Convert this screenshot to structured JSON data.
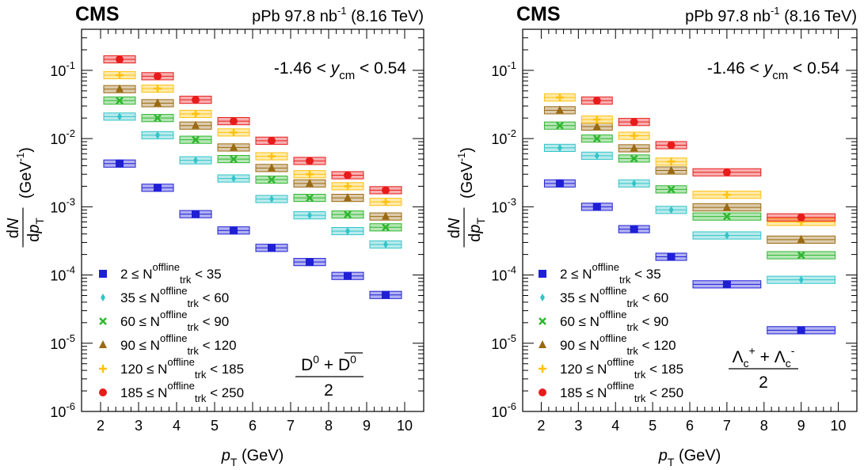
{
  "colors": {
    "2-35": "#1f1fd6",
    "35-60": "#33c4c8",
    "60-90": "#2fb62f",
    "90-120": "#9a6a12",
    "120-185": "#ffc20e",
    "185-250": "#e81b1b"
  },
  "chart_data": [
    {
      "type": "scatter",
      "panel": "left",
      "experiment": "CMS",
      "header": "pPb 97.8 nb",
      "header_sup": "-1",
      "header_tail": " (8.16 TeV)",
      "rapidity_pre": "-1.46 < ",
      "rapidity_var": "y",
      "rapidity_sub": "cm",
      "rapidity_post": " < 0.54",
      "particle_formula": "(D0 + anti-D0) / 2",
      "xlabel": "p",
      "xlabel_sub": "T",
      "xlabel_unit": " (GeV)",
      "ylabel_num": "dN",
      "ylabel_den": "dp",
      "ylabel_den_sub": "T",
      "ylabel_unit": "(GeV",
      "ylabel_unit_sup": "-1",
      "ylabel_unit_tail": ")",
      "x_ticks": [
        "2",
        "3",
        "4",
        "5",
        "6",
        "7",
        "8",
        "9",
        "10"
      ],
      "y_ticks": [
        {
          "base": "10",
          "exp": "-6",
          "value": 1e-06
        },
        {
          "base": "10",
          "exp": "-5",
          "value": 1e-05
        },
        {
          "base": "10",
          "exp": "-4",
          "value": 0.0001
        },
        {
          "base": "10",
          "exp": "-3",
          "value": 0.001
        },
        {
          "base": "10",
          "exp": "-2",
          "value": 0.01
        },
        {
          "base": "10",
          "exp": "-1",
          "value": 0.1
        }
      ],
      "xlim": [
        1.5,
        10.5
      ],
      "ylim": [
        1e-06,
        0.4
      ],
      "yscale": "log",
      "x_bins": [
        [
          2,
          3
        ],
        [
          3,
          4
        ],
        [
          4,
          5
        ],
        [
          5,
          6
        ],
        [
          6,
          7
        ],
        [
          7,
          8
        ],
        [
          8,
          9
        ],
        [
          9,
          10
        ]
      ],
      "series": [
        {
          "key": "2-35",
          "label_pre": "2 ≤ N",
          "label_sup": "offline",
          "label_sub": "trk",
          "label_post": " < 35",
          "marker": "square",
          "values": [
            0.0043,
            0.0019,
            0.00078,
            0.00045,
            0.00025,
            0.000155,
            9.7e-05,
            5.1e-05
          ]
        },
        {
          "key": "35-60",
          "label_pre": "35 ≤ N",
          "label_sup": "offline",
          "label_sub": "trk",
          "label_post": " < 60",
          "marker": "diamond",
          "values": [
            0.021,
            0.0112,
            0.0048,
            0.0026,
            0.0013,
            0.00075,
            0.00044,
            0.00028
          ]
        },
        {
          "key": "60-90",
          "label_pre": "60 ≤ N",
          "label_sup": "offline",
          "label_sub": "trk",
          "label_post": " < 90",
          "marker": "cross",
          "values": [
            0.036,
            0.02,
            0.0096,
            0.005,
            0.0025,
            0.00135,
            0.00077,
            0.0005
          ]
        },
        {
          "key": "90-120",
          "label_pre": "90 ≤ N",
          "label_sup": "offline",
          "label_sub": "trk",
          "label_post": " < 120",
          "marker": "triangle",
          "values": [
            0.053,
            0.033,
            0.0155,
            0.0074,
            0.0037,
            0.0022,
            0.00135,
            0.00072
          ]
        },
        {
          "key": "120-185",
          "label_pre": "120 ≤ N",
          "label_sup": "offline",
          "label_sub": "trk",
          "label_post": " < 185",
          "marker": "plus",
          "values": [
            0.085,
            0.054,
            0.023,
            0.0123,
            0.0055,
            0.003,
            0.002,
            0.00118
          ]
        },
        {
          "key": "185-250",
          "label_pre": "185 ≤ N",
          "label_sup": "offline",
          "label_sub": "trk",
          "label_post": " < 250",
          "marker": "circle",
          "values": [
            0.145,
            0.082,
            0.037,
            0.018,
            0.0093,
            0.0047,
            0.0029,
            0.00175
          ]
        }
      ]
    },
    {
      "type": "scatter",
      "panel": "right",
      "experiment": "CMS",
      "header": "pPb 97.8 nb",
      "header_sup": "-1",
      "header_tail": " (8.16 TeV)",
      "rapidity_pre": "-1.46 < ",
      "rapidity_var": "y",
      "rapidity_sub": "cm",
      "rapidity_post": " < 0.54",
      "particle_formula": "(Λc+ + Λc-) / 2",
      "xlabel": "p",
      "xlabel_sub": "T",
      "xlabel_unit": " (GeV)",
      "ylabel_num": "dN",
      "ylabel_den": "dp",
      "ylabel_den_sub": "T",
      "ylabel_unit": "(GeV",
      "ylabel_unit_sup": "-1",
      "ylabel_unit_tail": ")",
      "x_ticks": [
        "2",
        "3",
        "4",
        "5",
        "6",
        "7",
        "8",
        "9",
        "10"
      ],
      "y_ticks": [
        {
          "base": "10",
          "exp": "-6",
          "value": 1e-06
        },
        {
          "base": "10",
          "exp": "-5",
          "value": 1e-05
        },
        {
          "base": "10",
          "exp": "-4",
          "value": 0.0001
        },
        {
          "base": "10",
          "exp": "-3",
          "value": 0.001
        },
        {
          "base": "10",
          "exp": "-2",
          "value": 0.01
        },
        {
          "base": "10",
          "exp": "-1",
          "value": 0.1
        }
      ],
      "xlim": [
        1.5,
        10.5
      ],
      "ylim": [
        1e-06,
        0.4
      ],
      "yscale": "log",
      "x_bins": [
        [
          2,
          3
        ],
        [
          3,
          4
        ],
        [
          4,
          5
        ],
        [
          5,
          6
        ],
        [
          6,
          8
        ],
        [
          8,
          10
        ]
      ],
      "series": [
        {
          "key": "2-35",
          "label_pre": "2 ≤ N",
          "label_sup": "offline",
          "label_sub": "trk",
          "label_post": " < 35",
          "marker": "square",
          "values": [
            0.0022,
            0.001,
            0.00047,
            0.000185,
            7.3e-05,
            null
          ],
          "extra": [
            {
              "bin": [
                8,
                10
              ],
              "value": 1.55e-05
            }
          ]
        },
        {
          "key": "35-60",
          "label_pre": "35 ≤ N",
          "label_sup": "offline",
          "label_sub": "trk",
          "label_post": " < 60",
          "marker": "diamond",
          "values": [
            0.0073,
            0.0056,
            0.0022,
            0.0009,
            0.00038,
            8.5e-05
          ]
        },
        {
          "key": "60-90",
          "label_pre": "60 ≤ N",
          "label_sup": "offline",
          "label_sub": "trk",
          "label_post": " < 90",
          "marker": "cross",
          "values": [
            0.0155,
            0.01,
            0.0051,
            0.0018,
            0.00072,
            0.000195
          ]
        },
        {
          "key": "90-120",
          "label_pre": "90 ≤ N",
          "label_sup": "offline",
          "label_sub": "trk",
          "label_post": " < 120",
          "marker": "triangle",
          "values": [
            0.026,
            0.015,
            0.0072,
            0.0034,
            0.00098,
            0.00033
          ]
        },
        {
          "key": "120-185",
          "label_pre": "120 ≤ N",
          "label_sup": "offline",
          "label_sub": "trk",
          "label_post": " < 185",
          "marker": "plus",
          "values": [
            0.04,
            0.019,
            0.011,
            0.0046,
            0.0015,
            0.0006
          ]
        },
        {
          "key": "185-250",
          "label_pre": "185 ≤ N",
          "label_sup": "offline",
          "label_sub": "trk",
          "label_post": " < 250",
          "marker": "circle",
          "values": [
            null,
            0.036,
            0.0175,
            0.008,
            0.0032,
            0.0007
          ]
        }
      ]
    }
  ]
}
